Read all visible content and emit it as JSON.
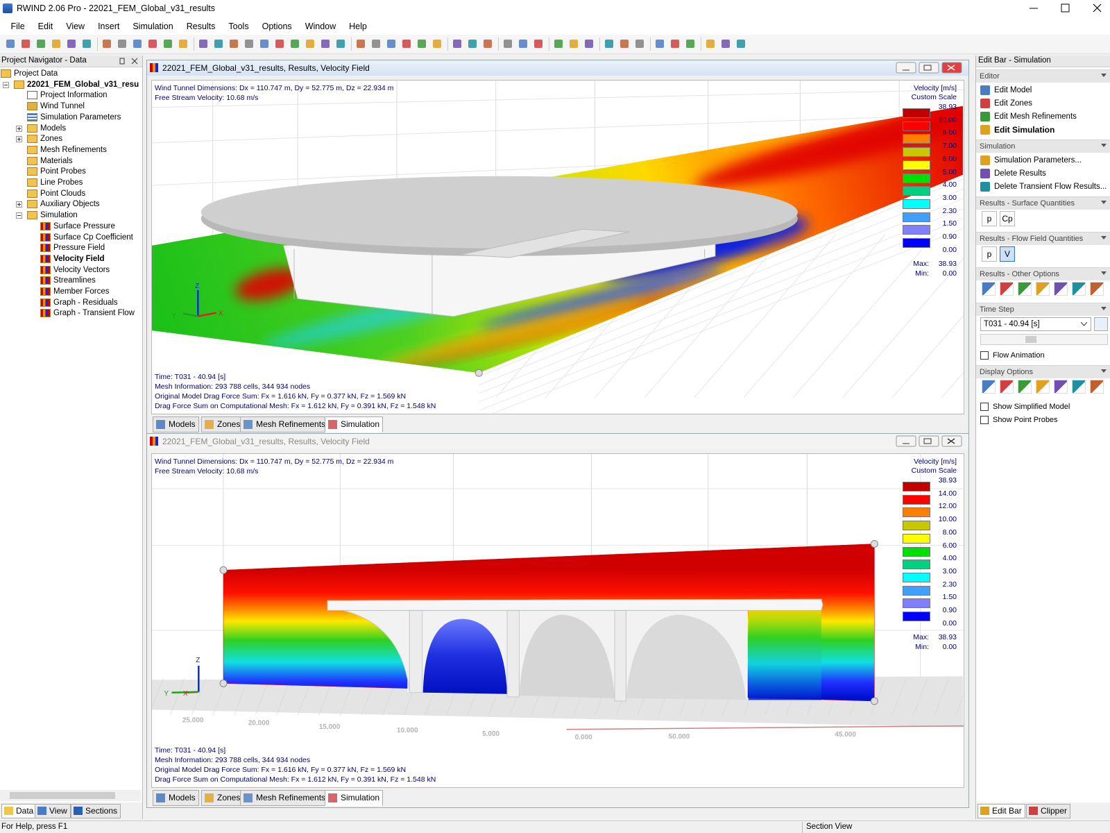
{
  "window": {
    "title": "RWIND 2.06 Pro - 22021_FEM_Global_v31_results"
  },
  "menu": [
    "File",
    "Edit",
    "View",
    "Insert",
    "Simulation",
    "Results",
    "Tools",
    "Options",
    "Window",
    "Help"
  ],
  "navigator": {
    "title": "Project Navigator - Data",
    "tree": [
      {
        "label": "Project Data",
        "icon": "folder",
        "children": [
          {
            "label": "22021_FEM_Global_v31_resu",
            "icon": "folder",
            "bold": true,
            "expanded": true,
            "children": [
              {
                "label": "Project Information",
                "icon": "doc"
              },
              {
                "label": "Wind Tunnel",
                "icon": "tunnel"
              },
              {
                "label": "Simulation Parameters",
                "icon": "params"
              },
              {
                "label": "Models",
                "icon": "folder",
                "expanded": false
              },
              {
                "label": "Zones",
                "icon": "folder",
                "expanded": false
              },
              {
                "label": "Mesh Refinements",
                "icon": "folder"
              },
              {
                "label": "Materials",
                "icon": "folder"
              },
              {
                "label": "Point Probes",
                "icon": "folder"
              },
              {
                "label": "Line Probes",
                "icon": "folder"
              },
              {
                "label": "Point Clouds",
                "icon": "folder"
              },
              {
                "label": "Auxiliary Objects",
                "icon": "folder",
                "expanded": false
              },
              {
                "label": "Simulation",
                "icon": "folder",
                "expanded": true,
                "children": [
                  {
                    "label": "Surface Pressure",
                    "icon": "result"
                  },
                  {
                    "label": "Surface Cp Coefficient",
                    "icon": "result"
                  },
                  {
                    "label": "Pressure Field",
                    "icon": "result"
                  },
                  {
                    "label": "Velocity Field",
                    "icon": "result",
                    "bold": true
                  },
                  {
                    "label": "Velocity Vectors",
                    "icon": "result"
                  },
                  {
                    "label": "Streamlines",
                    "icon": "result"
                  },
                  {
                    "label": "Member Forces",
                    "icon": "result"
                  },
                  {
                    "label": "Graph - Residuals",
                    "icon": "result"
                  },
                  {
                    "label": "Graph - Transient Flow",
                    "icon": "result"
                  }
                ]
              }
            ]
          }
        ]
      }
    ],
    "tabs": [
      "Data",
      "View",
      "Sections"
    ]
  },
  "views": [
    {
      "title": "22021_FEM_Global_v31_results, Results, Velocity Field",
      "active": true,
      "info_top": [
        "Wind Tunnel Dimensions: Dx = 110.747 m, Dy = 52.775 m, Dz = 22.934 m",
        "Free Stream Velocity: 10.68 m/s"
      ],
      "info_bottom": [
        "Time: T031 - 40.94 [s]",
        "Mesh Information: 293 788 cells, 344 934 nodes",
        "Original Model Drag Force Sum: Fx = 1.616 kN, Fy = 0.377 kN, Fz = 1.569 kN",
        "Drag Force Sum on Computational Mesh: Fx = 1.612 kN, Fy = 0.391 kN, Fz = 1.548 kN"
      ],
      "legend": {
        "title": "Velocity [m/s]",
        "subtitle": "Custom Scale",
        "values": [
          "38.93",
          "10.00",
          "8.00",
          "7.00",
          "6.00",
          "5.00",
          "4.00",
          "3.00",
          "2.30",
          "1.50",
          "0.90",
          "0.00"
        ],
        "colors": [
          "#c00000",
          "#ff0000",
          "#ff8000",
          "#c8c800",
          "#ffff00",
          "#00e000",
          "#00d080",
          "#00ffff",
          "#40a0ff",
          "#8080ff",
          "#0000ff"
        ],
        "max_label": "Max:",
        "max": "38.93",
        "min_label": "Min:",
        "min": "0.00"
      },
      "axes": {
        "z": "Z",
        "x": "X",
        "y": "Y"
      },
      "tabs": [
        "Models",
        "Zones",
        "Mesh Refinements",
        "Simulation"
      ],
      "selected_tab": 3
    },
    {
      "title": "22021_FEM_Global_v31_results, Results, Velocity Field",
      "active": false,
      "info_top": [
        "Wind Tunnel Dimensions: Dx = 110.747 m, Dy = 52.775 m, Dz = 22.934 m",
        "Free Stream Velocity: 10.68 m/s"
      ],
      "info_bottom": [
        "Time: T031 - 40.94 [s]",
        "Mesh Information: 293 788 cells, 344 934 nodes",
        "Original Model Drag Force Sum: Fx = 1.616 kN, Fy = 0.377 kN, Fz = 1.569 kN",
        "Drag Force Sum on Computational Mesh: Fx = 1.612 kN, Fy = 0.391 kN, Fz = 1.548 kN"
      ],
      "legend": {
        "title": "Velocity [m/s]",
        "subtitle": "Custom Scale",
        "values": [
          "38.93",
          "14.00",
          "12.00",
          "10.00",
          "8.00",
          "6.00",
          "4.00",
          "3.00",
          "2.30",
          "1.50",
          "0.90",
          "0.00"
        ],
        "colors": [
          "#c00000",
          "#ff0000",
          "#ff8000",
          "#c8c800",
          "#ffff00",
          "#00e000",
          "#00d080",
          "#00ffff",
          "#40a0ff",
          "#8080ff",
          "#0000ff"
        ],
        "max_label": "Max:",
        "max": "38.93",
        "min_label": "Min:",
        "min": "0.00"
      },
      "axes": {
        "z": "Z",
        "x": "X",
        "y": "Y"
      },
      "floor_labels": [
        "25.000",
        "20.000",
        "15.000",
        "10.000",
        "5.000",
        "0.000",
        "50.000",
        "45.000"
      ],
      "tabs": [
        "Models",
        "Zones",
        "Mesh Refinements",
        "Simulation"
      ],
      "selected_tab": 3
    }
  ],
  "edit_bar": {
    "title": "Edit Bar - Simulation",
    "sections": [
      {
        "title": "Editor",
        "items": [
          {
            "label": "Edit Model"
          },
          {
            "label": "Edit Zones"
          },
          {
            "label": "Edit Mesh Refinements"
          },
          {
            "label": "Edit Simulation",
            "bold": true
          }
        ]
      },
      {
        "title": "Simulation",
        "items": [
          {
            "label": "Simulation Parameters..."
          },
          {
            "label": "Delete Results"
          },
          {
            "label": "Delete Transient Flow Results..."
          }
        ]
      },
      {
        "title": "Results - Surface Quantities",
        "buttons": [
          "p",
          "Cp"
        ]
      },
      {
        "title": "Results - Flow Field Quantities",
        "buttons": [
          "p",
          "V"
        ],
        "pressed": 1
      },
      {
        "title": "Results - Other Options"
      },
      {
        "title": "Time Step",
        "select": "T031 - 40.94 [s]",
        "checkboxes": [
          {
            "label": "Flow Animation",
            "checked": false
          }
        ]
      },
      {
        "title": "Display Options",
        "checkboxes": [
          {
            "label": "Show Simplified Model",
            "checked": false
          },
          {
            "label": "Show Point Probes",
            "checked": false
          }
        ]
      }
    ],
    "tabs": [
      "Edit Bar",
      "Clipper"
    ]
  },
  "status_bar": {
    "left": "For Help, press F1",
    "right": "Section View"
  }
}
